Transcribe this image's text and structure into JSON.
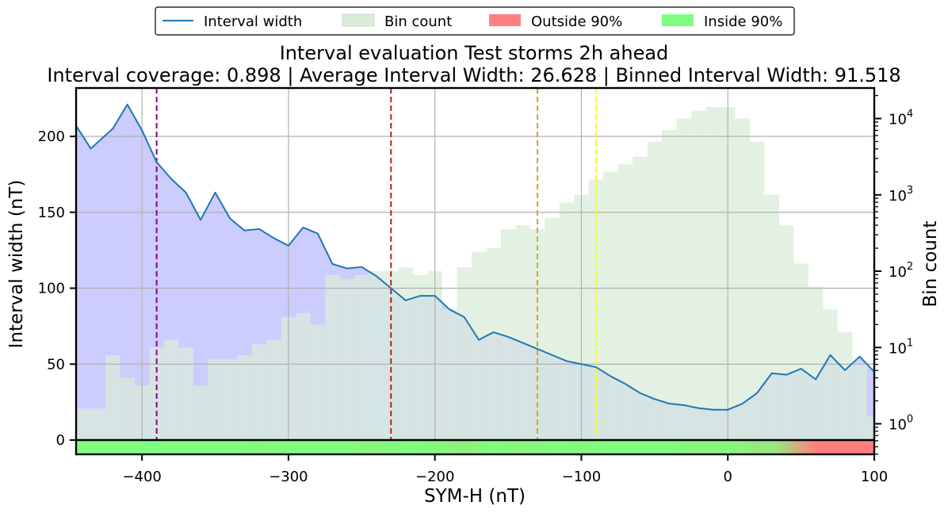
{
  "chart_data": {
    "type": "area",
    "title": "Interval evaluation Test storms 2h ahead",
    "subtitle": "Interval coverage: 0.898 | Average Interval Width: 26.628 | Binned Interval Width: 91.518",
    "xlabel": "SYM-H (nT)",
    "ylabel": "Interval width (nT)",
    "ylabel_right": "Bin count",
    "xlim": [
      -445,
      100
    ],
    "ylim": [
      -8,
      231
    ],
    "ylim_right_log10": [
      -0.4,
      4.4
    ],
    "x_ticks": [
      -400,
      -300,
      -200,
      -100,
      0,
      100
    ],
    "y_ticks": [
      0,
      50,
      100,
      150,
      200
    ],
    "y_ticks_right": [
      "10^0",
      "10^1",
      "10^2",
      "10^3",
      "10^4"
    ],
    "grid": true,
    "legend": {
      "placement": "top-center",
      "items": [
        {
          "label": "Interval width",
          "kind": "line",
          "color": "#1f77b4"
        },
        {
          "label": "Bin count",
          "kind": "patch",
          "color": "#d9ecd9"
        },
        {
          "label": "Outside 90%",
          "kind": "patch",
          "color": "#ff7f7f"
        },
        {
          "label": "Inside 90%",
          "kind": "patch",
          "color": "#7fff7f"
        }
      ]
    },
    "interval_width": {
      "name": "Interval width",
      "color": "#1f77b4",
      "fill_color": "#ccccff",
      "x": [
        -445,
        -435,
        -420,
        -410,
        -400,
        -390,
        -380,
        -370,
        -360,
        -350,
        -340,
        -330,
        -320,
        -310,
        -300,
        -290,
        -280,
        -270,
        -260,
        -250,
        -240,
        -230,
        -220,
        -210,
        -200,
        -190,
        -180,
        -170,
        -160,
        -150,
        -140,
        -130,
        -120,
        -110,
        -100,
        -90,
        -80,
        -70,
        -60,
        -50,
        -40,
        -30,
        -20,
        -10,
        0,
        10,
        20,
        30,
        40,
        50,
        60,
        70,
        80,
        90,
        100
      ],
      "y": [
        207,
        192,
        205,
        221,
        204,
        183,
        172,
        163,
        145,
        163,
        146,
        138,
        139,
        133,
        128,
        140,
        136,
        116,
        113,
        114,
        108,
        100,
        92,
        95,
        95,
        86,
        81,
        66,
        71,
        68,
        64,
        60,
        56,
        52,
        50,
        48,
        42,
        37,
        31,
        27,
        24,
        23,
        21,
        20,
        20,
        24,
        31,
        44,
        43,
        47,
        40,
        56,
        46,
        55,
        45
      ]
    },
    "bin_count": {
      "name": "Bin count",
      "color": "#d9ecd9",
      "bin_width": 10,
      "bin_left_edges": [
        -445,
        -435,
        -425,
        -415,
        -405,
        -395,
        -385,
        -375,
        -365,
        -355,
        -345,
        -335,
        -325,
        -315,
        -305,
        -295,
        -285,
        -275,
        -265,
        -255,
        -245,
        -235,
        -225,
        -215,
        -205,
        -195,
        -185,
        -175,
        -165,
        -155,
        -145,
        -135,
        -125,
        -115,
        -105,
        -95,
        -85,
        -75,
        -65,
        -55,
        -45,
        -35,
        -25,
        -15,
        -5,
        5,
        15,
        25,
        35,
        45,
        55,
        65,
        75,
        85,
        95
      ],
      "log10_counts": [
        0.2,
        0.2,
        0.9,
        0.6,
        0.5,
        1.0,
        1.1,
        1.0,
        0.5,
        0.85,
        0.85,
        0.9,
        1.05,
        1.1,
        1.4,
        1.45,
        1.3,
        1.95,
        1.9,
        1.95,
        2.0,
        2.0,
        2.05,
        1.95,
        2.0,
        1.5,
        2.05,
        2.25,
        2.3,
        2.55,
        2.6,
        2.55,
        2.7,
        2.9,
        3.0,
        3.2,
        3.3,
        3.4,
        3.5,
        3.7,
        3.85,
        4.0,
        4.1,
        4.15,
        4.15,
        4.0,
        3.7,
        3.0,
        2.6,
        2.1,
        1.8,
        1.5,
        1.2,
        0.8,
        0.1
      ]
    },
    "vertical_lines": [
      {
        "x": -390,
        "color": "#8b008b"
      },
      {
        "x": -230,
        "color": "#b22222"
      },
      {
        "x": -130,
        "color": "#daa520"
      },
      {
        "x": -90,
        "color": "#ffff00"
      }
    ],
    "coverage_strip": {
      "inside_color": "#7fff7f",
      "outside_color": "#ff7f7f",
      "x": [
        -445,
        -420,
        -400,
        -380,
        -360,
        -340,
        -320,
        -300,
        -280,
        -260,
        -240,
        -220,
        -200,
        -180,
        -160,
        -140,
        -120,
        -100,
        -80,
        -60,
        -40,
        -20,
        0,
        10,
        20,
        30,
        40,
        50,
        60,
        70,
        80,
        90,
        100
      ],
      "coverage": [
        1.0,
        1.0,
        1.0,
        1.0,
        1.0,
        1.0,
        0.95,
        1.0,
        1.0,
        1.0,
        0.9,
        1.0,
        0.95,
        0.85,
        1.0,
        0.9,
        1.0,
        0.95,
        1.0,
        1.0,
        1.0,
        0.9,
        0.95,
        0.9,
        0.8,
        0.85,
        0.6,
        0.3,
        0.0,
        0.0,
        0.0,
        0.0,
        0.0
      ]
    }
  }
}
